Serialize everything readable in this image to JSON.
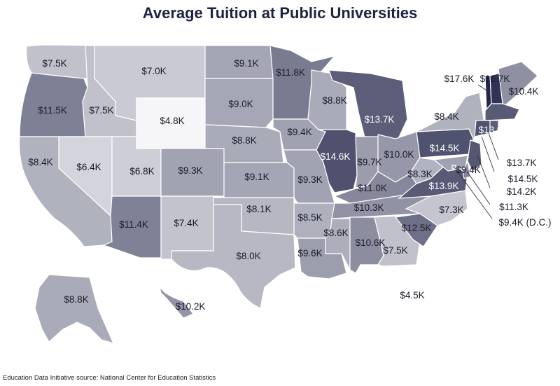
{
  "title": "Average Tuition at Public Universities",
  "source": "Education Data Initiative source: National Center for Education Statistics",
  "colors": {
    "scale_low": "#ffffff",
    "scale_high": "#23264a",
    "border": "#ffffff"
  },
  "tuition": [
    {
      "state": "WA",
      "label": "$7.5K",
      "value": 7.5
    },
    {
      "state": "OR",
      "label": "$11.5K",
      "value": 11.5
    },
    {
      "state": "CA",
      "label": "$8.4K",
      "value": 8.4
    },
    {
      "state": "ID",
      "label": "$7.5K",
      "value": 7.5
    },
    {
      "state": "NV",
      "label": "$6.4K",
      "value": 6.4
    },
    {
      "state": "MT",
      "label": "$7.0K",
      "value": 7.0
    },
    {
      "state": "WY",
      "label": "$4.8K",
      "value": 4.8
    },
    {
      "state": "UT",
      "label": "$6.8K",
      "value": 6.8
    },
    {
      "state": "AZ",
      "label": "$11.4K",
      "value": 11.4
    },
    {
      "state": "CO",
      "label": "$9.3K",
      "value": 9.3
    },
    {
      "state": "NM",
      "label": "$7.4K",
      "value": 7.4
    },
    {
      "state": "ND",
      "label": "$9.1K",
      "value": 9.1
    },
    {
      "state": "SD",
      "label": "$9.0K",
      "value": 9.0
    },
    {
      "state": "NE",
      "label": "$8.8K",
      "value": 8.8
    },
    {
      "state": "KS",
      "label": "$9.1K",
      "value": 9.1
    },
    {
      "state": "OK",
      "label": "$8.1K",
      "value": 8.1
    },
    {
      "state": "TX",
      "label": "$8.0K",
      "value": 8.0
    },
    {
      "state": "MN",
      "label": "$11.8K",
      "value": 11.8
    },
    {
      "state": "IA",
      "label": "$9.4K",
      "value": 9.4
    },
    {
      "state": "MO",
      "label": "$9.3K",
      "value": 9.3
    },
    {
      "state": "AR",
      "label": "$8.5K",
      "value": 8.5
    },
    {
      "state": "LA",
      "label": "$9.6K",
      "value": 9.6
    },
    {
      "state": "WI",
      "label": "$8.8K",
      "value": 8.8
    },
    {
      "state": "IL",
      "label": "$14.6K",
      "value": 14.6
    },
    {
      "state": "MI",
      "label": "$13.7K",
      "value": 13.7
    },
    {
      "state": "IN",
      "label": "$9.7K",
      "value": 9.7
    },
    {
      "state": "OH",
      "label": "$10.0K",
      "value": 10.0
    },
    {
      "state": "KY",
      "label": "$11.0K",
      "value": 11.0
    },
    {
      "state": "TN",
      "label": "$10.3K",
      "value": 10.3
    },
    {
      "state": "MS",
      "label": "$8.6K",
      "value": 8.6
    },
    {
      "state": "AL",
      "label": "$10.6K",
      "value": 10.6
    },
    {
      "state": "GA",
      "label": "$7.5K",
      "value": 7.5
    },
    {
      "state": "FL",
      "label": "$4.5K",
      "value": 4.5
    },
    {
      "state": "SC",
      "label": "$12.5K",
      "value": 12.5
    },
    {
      "state": "NC",
      "label": "$7.3K",
      "value": 7.3
    },
    {
      "state": "VA",
      "label": "$13.9K",
      "value": 13.9
    },
    {
      "state": "WV",
      "label": "$8.3K",
      "value": 8.3
    },
    {
      "state": "PA",
      "label": "$14.5K",
      "value": 14.5
    },
    {
      "state": "NY",
      "label": "$8.4K",
      "value": 8.4
    },
    {
      "state": "VT",
      "label": "$17.6K",
      "value": 17.6
    },
    {
      "state": "NH",
      "label": "$16.7K",
      "value": 16.7
    },
    {
      "state": "ME",
      "label": "$10.4K",
      "value": 10.4
    },
    {
      "state": "MA",
      "label": "$13.9K",
      "value": 13.9
    },
    {
      "state": "RI",
      "label": "$13.7K",
      "value": 13.7
    },
    {
      "state": "CT",
      "label": "$14.5K",
      "value": 14.5
    },
    {
      "state": "NJ",
      "label": "$14.2K",
      "value": 14.2
    },
    {
      "state": "DE",
      "label": "$11.3K",
      "value": 11.3
    },
    {
      "state": "MD",
      "label": "$9.4K",
      "value": 9.4
    },
    {
      "state": "DC",
      "label": "$9.4K (D.C.)",
      "value": 9.4
    },
    {
      "state": "AK",
      "label": "$8.8K",
      "value": 8.8
    },
    {
      "state": "HI",
      "label": "$10.2K",
      "value": 10.2
    }
  ]
}
